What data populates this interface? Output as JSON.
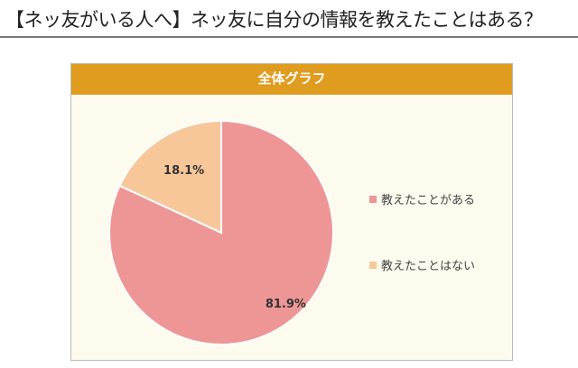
{
  "page_title": "【ネッ友がいる人へ】ネッ友に自分の情報を教えたことはある？",
  "chart_data": {
    "type": "pie",
    "title": "全体グラフ",
    "slices": [
      {
        "label": "教えたことがある",
        "value": 81.9,
        "display": "81.9%",
        "color": "#EE9696"
      },
      {
        "label": "教えたことはない",
        "value": 18.1,
        "display": "18.1%",
        "color": "#F7C79A"
      }
    ],
    "legend_position": "right"
  }
}
